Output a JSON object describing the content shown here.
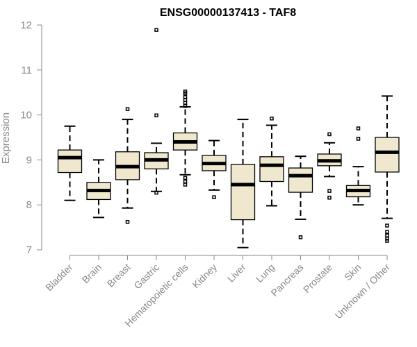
{
  "chart_data": {
    "type": "box",
    "title": "ENSG00000137413 - TAF8",
    "xlabel": "",
    "ylabel": "Expression",
    "ylim": [
      7,
      12
    ],
    "yticks": [
      7,
      8,
      9,
      10,
      11,
      12
    ],
    "grid": false,
    "colors": {
      "box_fill": "#efe8cf",
      "box_stroke": "#000000",
      "axis": "#888888"
    },
    "categories": [
      "Bladder",
      "Brain",
      "Breast",
      "Gastric",
      "Hematopoietic cells",
      "Kidney",
      "Liver",
      "Lung",
      "Pancreas",
      "Prostate",
      "Skin",
      "Unknown / Other"
    ],
    "boxes": [
      {
        "category": "Bladder",
        "whisker_low": 8.1,
        "q1": 8.72,
        "median": 9.05,
        "q3": 9.22,
        "whisker_high": 9.75,
        "outliers": []
      },
      {
        "category": "Brain",
        "whisker_low": 7.72,
        "q1": 8.12,
        "median": 8.32,
        "q3": 8.5,
        "whisker_high": 9.0,
        "outliers": []
      },
      {
        "category": "Breast",
        "whisker_low": 7.93,
        "q1": 8.56,
        "median": 8.85,
        "q3": 9.18,
        "whisker_high": 9.9,
        "outliers": [
          7.62,
          10.13
        ]
      },
      {
        "category": "Gastric",
        "whisker_low": 8.3,
        "q1": 8.8,
        "median": 9.0,
        "q3": 9.16,
        "whisker_high": 9.37,
        "outliers": [
          8.27,
          9.99,
          11.89
        ]
      },
      {
        "category": "Hematopoietic cells",
        "whisker_low": 8.67,
        "q1": 9.22,
        "median": 9.4,
        "q3": 9.6,
        "whisker_high": 10.18,
        "outliers": [
          8.45,
          8.52,
          8.6,
          10.2,
          10.27,
          10.33,
          10.4,
          10.48,
          10.52
        ]
      },
      {
        "category": "Kidney",
        "whisker_low": 8.33,
        "q1": 8.76,
        "median": 8.92,
        "q3": 9.1,
        "whisker_high": 9.43,
        "outliers": [
          8.17
        ]
      },
      {
        "category": "Liver",
        "whisker_low": 7.05,
        "q1": 7.67,
        "median": 8.45,
        "q3": 8.9,
        "whisker_high": 9.9,
        "outliers": []
      },
      {
        "category": "Lung",
        "whisker_low": 7.98,
        "q1": 8.52,
        "median": 8.88,
        "q3": 9.07,
        "whisker_high": 9.77,
        "outliers": [
          9.92
        ]
      },
      {
        "category": "Pancreas",
        "whisker_low": 7.68,
        "q1": 8.28,
        "median": 8.65,
        "q3": 8.82,
        "whisker_high": 9.08,
        "outliers": [
          7.28
        ]
      },
      {
        "category": "Prostate",
        "whisker_low": 8.63,
        "q1": 8.87,
        "median": 8.98,
        "q3": 9.13,
        "whisker_high": 9.38,
        "outliers": [
          8.16,
          8.31,
          9.57
        ]
      },
      {
        "category": "Skin",
        "whisker_low": 8.0,
        "q1": 8.18,
        "median": 8.32,
        "q3": 8.43,
        "whisker_high": 8.85,
        "outliers": [
          9.47,
          9.7
        ]
      },
      {
        "category": "Unknown / Other",
        "whisker_low": 7.7,
        "q1": 8.73,
        "median": 9.17,
        "q3": 9.5,
        "whisker_high": 10.42,
        "outliers": [
          7.2,
          7.25,
          7.32,
          7.4,
          7.54
        ]
      }
    ]
  }
}
